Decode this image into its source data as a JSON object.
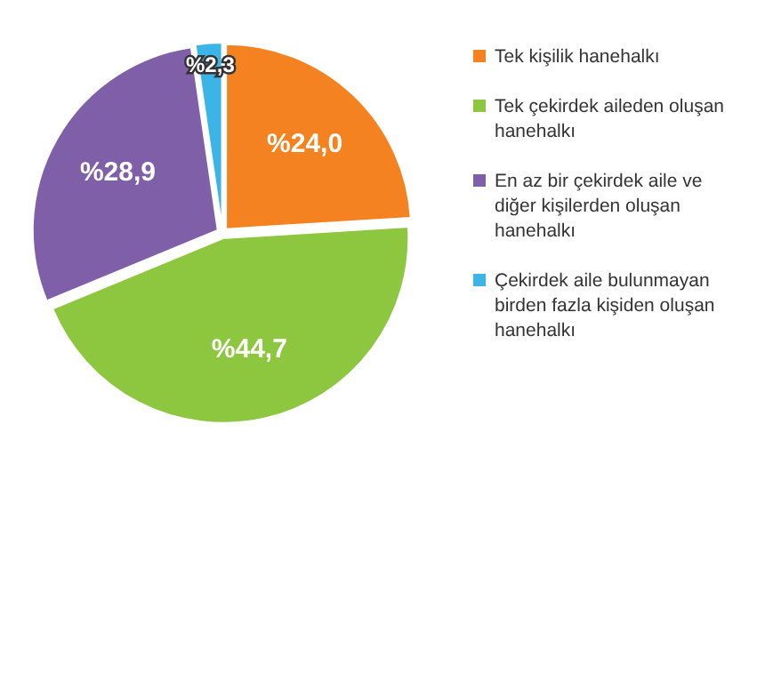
{
  "chart_data": {
    "type": "pie",
    "categories": [
      "Tek kişilik hanehalkı",
      "Tek çekirdek aileden oluşan hanehalkı",
      "En az bir çekirdek aile ve diğer kişilerden oluşan hanehalkı",
      "Çekirdek aile bulunmayan birden fazla kişiden oluşan hanehalkı"
    ],
    "values": [
      24.0,
      44.7,
      28.9,
      2.3
    ],
    "colors": [
      "#f58220",
      "#8dc63f",
      "#7f5fa8",
      "#3cb4e5"
    ],
    "value_labels": [
      "%24,0",
      "%44,7",
      "%28,9",
      "%2,3"
    ],
    "legend": "right"
  }
}
